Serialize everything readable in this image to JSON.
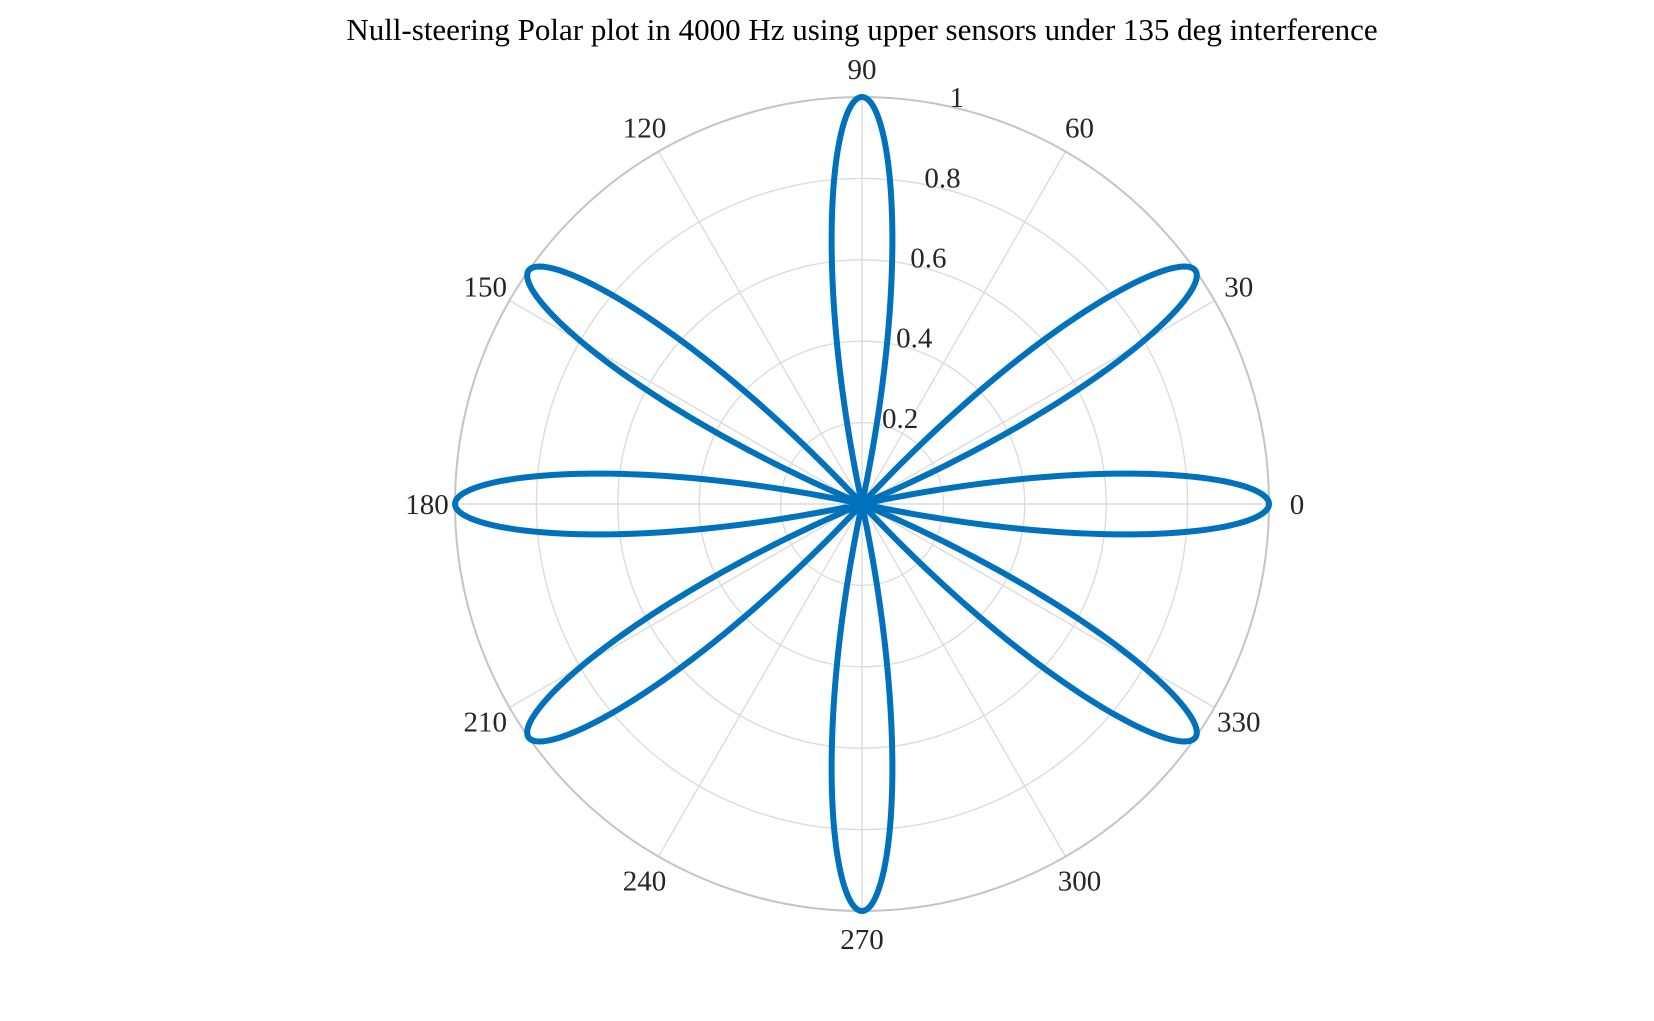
{
  "chart_data": {
    "type": "polar",
    "title": "Null-steering Polar plot in 4000 Hz using upper sensors under 135 deg interference",
    "theta_unit": "deg",
    "theta_ticks": [
      0,
      30,
      60,
      90,
      120,
      150,
      180,
      210,
      240,
      270,
      300,
      330
    ],
    "theta_tick_labels": [
      "0",
      "30",
      "60",
      "90",
      "120",
      "150",
      "180",
      "210",
      "240",
      "270",
      "300",
      "330"
    ],
    "r_ticks": [
      0.2,
      0.4,
      0.6,
      0.8,
      1
    ],
    "r_tick_labels": [
      "0.2",
      "0.4",
      "0.6",
      "0.8",
      "1"
    ],
    "rlim": [
      0,
      1
    ],
    "r_tick_label_angle_deg": 80,
    "grid": true,
    "grid_color": "#dcdcdc",
    "outer_ring_color": "#c4c4c4",
    "series": [
      {
        "color": "#0072bd",
        "lobes": [
          {
            "center_deg": 0,
            "peak": 1.0,
            "lobe_half_width_deg": 12
          },
          {
            "center_deg": 180,
            "peak": 1.0,
            "lobe_half_width_deg": 12
          },
          {
            "center_deg": 35,
            "peak": 1.0,
            "lobe_half_width_deg": 12
          },
          {
            "center_deg": 145,
            "peak": 1.0,
            "lobe_half_width_deg": 12
          },
          {
            "center_deg": 215,
            "peak": 1.0,
            "lobe_half_width_deg": 12
          },
          {
            "center_deg": 325,
            "peak": 1.0,
            "lobe_half_width_deg": 12
          },
          {
            "center_deg": 90,
            "peak": 1.0,
            "lobe_half_width_deg": 12
          },
          {
            "center_deg": 270,
            "peak": 1.0,
            "lobe_half_width_deg": 12
          }
        ],
        "null_deg": 135
      }
    ]
  }
}
